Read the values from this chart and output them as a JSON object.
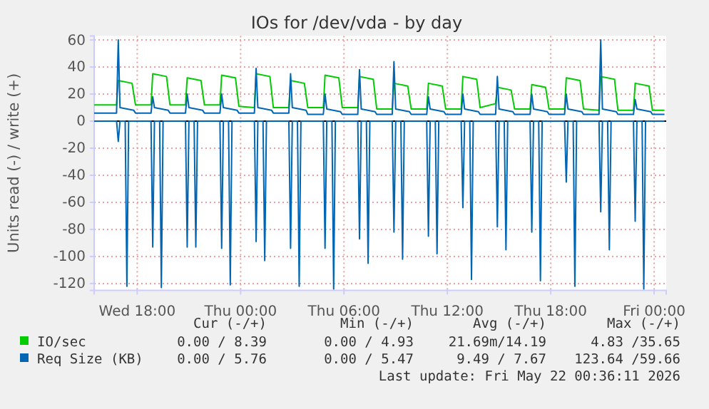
{
  "chart_data": {
    "type": "line",
    "title": "IOs for /dev/vda - by day",
    "ylabel": "Units read (-) / write (+)",
    "xlim": [
      "2026-05-20T15:30",
      "2026-05-22T00:42"
    ],
    "ylim": [
      -125,
      63
    ],
    "xticks": [
      {
        "value": "2026-05-20T18:00",
        "label": "Wed 18:00"
      },
      {
        "value": "2026-05-21T00:00",
        "label": "Thu 00:00"
      },
      {
        "value": "2026-05-21T06:00",
        "label": "Thu 06:00"
      },
      {
        "value": "2026-05-21T12:00",
        "label": "Thu 12:00"
      },
      {
        "value": "2026-05-21T18:00",
        "label": "Thu 18:00"
      },
      {
        "value": "2026-05-22T00:00",
        "label": "Fri 00:00"
      }
    ],
    "yticks": [
      -120,
      -100,
      -80,
      -60,
      -40,
      -20,
      0,
      20,
      40,
      60
    ],
    "grid": true,
    "legend": "bottom",
    "line_style": "solid",
    "marker": "none",
    "ref_lines": [
      {
        "axis": "y",
        "value": 0,
        "color": "#000000"
      }
    ],
    "series": [
      {
        "name": "IO/sec",
        "color": "#00cc00",
        "x": [
          "2026-05-20T15:30",
          "2026-05-20T16:48",
          "2026-05-20T16:54",
          "2026-05-20T17:42",
          "2026-05-20T17:54",
          "2026-05-20T18:48",
          "2026-05-20T18:54",
          "2026-05-20T19:42",
          "2026-05-20T19:54",
          "2026-05-20T20:48",
          "2026-05-20T20:54",
          "2026-05-20T21:42",
          "2026-05-20T21:54",
          "2026-05-20T22:48",
          "2026-05-20T22:54",
          "2026-05-20T23:42",
          "2026-05-20T23:54",
          "2026-05-21T00:48",
          "2026-05-21T00:54",
          "2026-05-21T01:42",
          "2026-05-21T01:54",
          "2026-05-21T02:48",
          "2026-05-21T02:54",
          "2026-05-21T03:42",
          "2026-05-21T03:54",
          "2026-05-21T04:48",
          "2026-05-21T04:54",
          "2026-05-21T05:42",
          "2026-05-21T05:54",
          "2026-05-21T06:48",
          "2026-05-21T06:54",
          "2026-05-21T07:42",
          "2026-05-21T07:54",
          "2026-05-21T08:48",
          "2026-05-21T08:54",
          "2026-05-21T09:42",
          "2026-05-21T09:54",
          "2026-05-21T10:48",
          "2026-05-21T10:54",
          "2026-05-21T11:42",
          "2026-05-21T11:54",
          "2026-05-21T12:48",
          "2026-05-21T12:54",
          "2026-05-21T13:42",
          "2026-05-21T13:54",
          "2026-05-21T14:48",
          "2026-05-21T14:54",
          "2026-05-21T15:42",
          "2026-05-21T15:54",
          "2026-05-21T16:48",
          "2026-05-21T16:54",
          "2026-05-21T17:42",
          "2026-05-21T17:54",
          "2026-05-21T18:48",
          "2026-05-21T18:54",
          "2026-05-21T19:42",
          "2026-05-21T19:54",
          "2026-05-21T20:48",
          "2026-05-21T20:54",
          "2026-05-21T21:42",
          "2026-05-21T21:54",
          "2026-05-21T22:48",
          "2026-05-21T22:54",
          "2026-05-21T23:42",
          "2026-05-21T23:54",
          "2026-05-22T00:36"
        ],
        "values": [
          12,
          12,
          30,
          28,
          12,
          12,
          35,
          33,
          12,
          12,
          32,
          30,
          12,
          12,
          34,
          32,
          11,
          10,
          35,
          33,
          10,
          10,
          30,
          28,
          10,
          10,
          34,
          32,
          10,
          10,
          33,
          31,
          9,
          9,
          28,
          26,
          9,
          9,
          28,
          26,
          9,
          9,
          33,
          31,
          10,
          13,
          25,
          23,
          9,
          9,
          27,
          25,
          9,
          9,
          32,
          30,
          9,
          8,
          33,
          31,
          8,
          8,
          28,
          26,
          8,
          8
        ]
      },
      {
        "name": "Req Size (KB)",
        "color": "#0066b3",
        "x": [
          "2026-05-20T15:30",
          "2026-05-20T16:48",
          "2026-05-20T16:54",
          "2026-05-20T17:00",
          "2026-05-20T17:48",
          "2026-05-20T17:54",
          "2026-05-20T18:48",
          "2026-05-20T18:54",
          "2026-05-20T19:00",
          "2026-05-20T19:48",
          "2026-05-20T19:54",
          "2026-05-20T20:48",
          "2026-05-20T20:54",
          "2026-05-20T21:00",
          "2026-05-20T21:48",
          "2026-05-20T21:54",
          "2026-05-20T22:48",
          "2026-05-20T22:54",
          "2026-05-20T23:00",
          "2026-05-20T23:48",
          "2026-05-20T23:54",
          "2026-05-21T00:48",
          "2026-05-21T00:54",
          "2026-05-21T01:00",
          "2026-05-21T01:48",
          "2026-05-21T01:54",
          "2026-05-21T02:48",
          "2026-05-21T02:54",
          "2026-05-21T03:00",
          "2026-05-21T03:48",
          "2026-05-21T03:54",
          "2026-05-21T04:48",
          "2026-05-21T04:54",
          "2026-05-21T05:00",
          "2026-05-21T05:48",
          "2026-05-21T05:54",
          "2026-05-21T06:48",
          "2026-05-21T06:54",
          "2026-05-21T07:00",
          "2026-05-21T07:48",
          "2026-05-21T07:54",
          "2026-05-21T08:48",
          "2026-05-21T08:54",
          "2026-05-21T09:00",
          "2026-05-21T09:48",
          "2026-05-21T09:54",
          "2026-05-21T10:48",
          "2026-05-21T10:54",
          "2026-05-21T11:00",
          "2026-05-21T11:48",
          "2026-05-21T11:54",
          "2026-05-21T12:48",
          "2026-05-21T12:54",
          "2026-05-21T13:00",
          "2026-05-21T13:48",
          "2026-05-21T13:54",
          "2026-05-21T14:48",
          "2026-05-21T14:54",
          "2026-05-21T15:00",
          "2026-05-21T15:48",
          "2026-05-21T15:54",
          "2026-05-21T16:48",
          "2026-05-21T16:54",
          "2026-05-21T17:00",
          "2026-05-21T17:48",
          "2026-05-21T17:54",
          "2026-05-21T18:48",
          "2026-05-21T18:54",
          "2026-05-21T19:00",
          "2026-05-21T19:48",
          "2026-05-21T19:54",
          "2026-05-21T20:48",
          "2026-05-21T20:54",
          "2026-05-21T21:00",
          "2026-05-21T21:48",
          "2026-05-21T21:54",
          "2026-05-21T22:48",
          "2026-05-21T22:54",
          "2026-05-21T23:00",
          "2026-05-21T23:48",
          "2026-05-21T23:54",
          "2026-05-22T00:36"
        ],
        "values": [
          6,
          6,
          60,
          10,
          8,
          6,
          6,
          18,
          10,
          8,
          6,
          6,
          20,
          10,
          8,
          6,
          6,
          20,
          10,
          8,
          6,
          6,
          39,
          10,
          8,
          6,
          6,
          35,
          10,
          8,
          5,
          5,
          20,
          9,
          7,
          5,
          5,
          38,
          9,
          7,
          5,
          5,
          44,
          9,
          7,
          5,
          5,
          18,
          9,
          7,
          5,
          5,
          20,
          9,
          7,
          5,
          5,
          33,
          9,
          7,
          5,
          5,
          20,
          9,
          7,
          5,
          5,
          20,
          9,
          7,
          5,
          5,
          60,
          9,
          7,
          5,
          5,
          16,
          9,
          7,
          5,
          5
        ]
      },
      {
        "color": "#0066b3",
        "x": [
          "2026-05-20T15:30",
          "2026-05-20T16:48",
          "2026-05-20T16:54",
          "2026-05-20T17:00",
          "2026-05-20T17:18",
          "2026-05-20T17:24",
          "2026-05-20T17:30",
          "2026-05-20T18:48",
          "2026-05-20T18:54",
          "2026-05-20T19:00",
          "2026-05-20T19:18",
          "2026-05-20T19:24",
          "2026-05-20T19:30",
          "2026-05-20T20:48",
          "2026-05-20T20:54",
          "2026-05-20T21:00",
          "2026-05-20T21:18",
          "2026-05-20T21:24",
          "2026-05-20T21:30",
          "2026-05-20T22:48",
          "2026-05-20T22:54",
          "2026-05-20T23:00",
          "2026-05-20T23:18",
          "2026-05-20T23:24",
          "2026-05-20T23:30",
          "2026-05-21T00:48",
          "2026-05-21T00:54",
          "2026-05-21T01:00",
          "2026-05-21T01:18",
          "2026-05-21T01:24",
          "2026-05-21T01:30",
          "2026-05-21T02:48",
          "2026-05-21T02:54",
          "2026-05-21T03:00",
          "2026-05-21T03:18",
          "2026-05-21T03:24",
          "2026-05-21T03:30",
          "2026-05-21T04:48",
          "2026-05-21T04:54",
          "2026-05-21T05:00",
          "2026-05-21T05:18",
          "2026-05-21T05:24",
          "2026-05-21T05:30",
          "2026-05-21T06:48",
          "2026-05-21T06:54",
          "2026-05-21T07:00",
          "2026-05-21T07:18",
          "2026-05-21T07:24",
          "2026-05-21T07:30",
          "2026-05-21T08:48",
          "2026-05-21T08:54",
          "2026-05-21T09:00",
          "2026-05-21T09:18",
          "2026-05-21T09:24",
          "2026-05-21T09:30",
          "2026-05-21T10:48",
          "2026-05-21T10:54",
          "2026-05-21T11:00",
          "2026-05-21T11:18",
          "2026-05-21T11:24",
          "2026-05-21T11:30",
          "2026-05-21T12:48",
          "2026-05-21T12:54",
          "2026-05-21T13:00",
          "2026-05-21T13:18",
          "2026-05-21T13:24",
          "2026-05-21T13:30",
          "2026-05-21T14:48",
          "2026-05-21T14:54",
          "2026-05-21T15:00",
          "2026-05-21T15:18",
          "2026-05-21T15:24",
          "2026-05-21T15:30",
          "2026-05-21T16:48",
          "2026-05-21T16:54",
          "2026-05-21T17:00",
          "2026-05-21T17:18",
          "2026-05-21T17:24",
          "2026-05-21T17:30",
          "2026-05-21T18:48",
          "2026-05-21T18:54",
          "2026-05-21T19:00",
          "2026-05-21T19:18",
          "2026-05-21T19:24",
          "2026-05-21T19:30",
          "2026-05-21T20:48",
          "2026-05-21T20:54",
          "2026-05-21T21:00",
          "2026-05-21T21:18",
          "2026-05-21T21:24",
          "2026-05-21T21:30",
          "2026-05-21T22:48",
          "2026-05-21T22:54",
          "2026-05-21T23:00",
          "2026-05-21T23:18",
          "2026-05-21T23:24",
          "2026-05-21T23:30",
          "2026-05-22T00:36"
        ],
        "values": [
          0,
          0,
          -15,
          0,
          0,
          -122,
          0,
          0,
          -93,
          0,
          0,
          -123,
          0,
          0,
          -93,
          0,
          0,
          -93,
          0,
          0,
          -94,
          0,
          0,
          -121,
          0,
          0,
          -89,
          0,
          0,
          -103,
          0,
          0,
          -94,
          0,
          0,
          -122,
          0,
          0,
          -94,
          0,
          0,
          -124,
          0,
          0,
          -87,
          0,
          0,
          -105,
          0,
          0,
          -82,
          0,
          0,
          -102,
          0,
          0,
          -85,
          0,
          0,
          -98,
          0,
          0,
          -64,
          0,
          0,
          -117,
          0,
          0,
          -78,
          0,
          0,
          -95,
          0,
          0,
          -82,
          0,
          0,
          -118,
          0,
          0,
          -45,
          0,
          0,
          -122,
          0,
          0,
          -67,
          0,
          0,
          -95,
          0,
          0,
          -74,
          0,
          0,
          -124,
          0,
          0
        ]
      }
    ],
    "annotations": [
      "Cur (-/+)",
      "Min (-/+)",
      "Avg (-/+)",
      "Max (-/+)",
      "0.00 / 8.39",
      "0.00 / 4.93",
      "21.69m/14.19",
      "4.83 /35.65",
      "0.00 / 5.76",
      "0.00 / 5.47",
      "9.49 / 7.67",
      "123.64 /59.66",
      "Last update: Fri May 22 00:36:11 2026"
    ]
  }
}
